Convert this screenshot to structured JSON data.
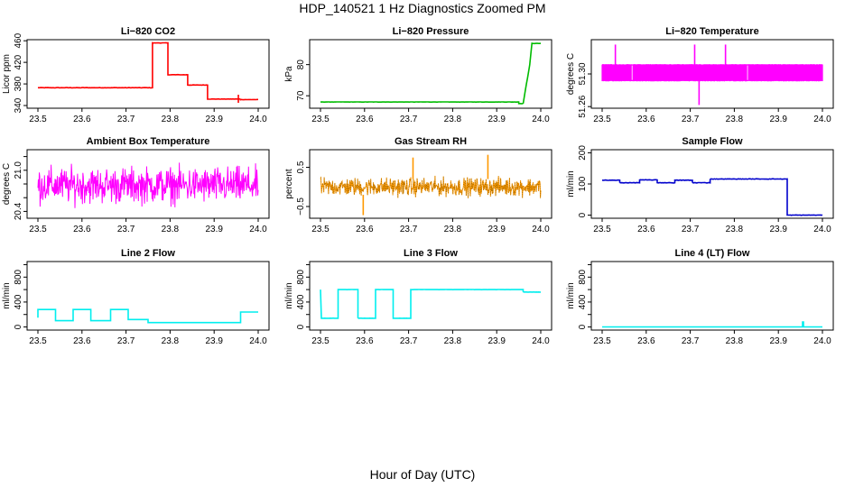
{
  "page": {
    "title": "HDP_140521  1 Hz Diagnostics Zoomed PM",
    "xlabel": "Hour of Day (UTC)"
  },
  "chart_data": [
    {
      "type": "line",
      "title": "Li−820 CO2",
      "ylabel": "Licor ppm",
      "xlim": [
        23.5,
        24.0
      ],
      "ylim": [
        335,
        462
      ],
      "yticks": [
        340,
        380,
        420,
        460
      ],
      "ytick_labels": [
        "340",
        "380",
        "420",
        "460"
      ],
      "xticks": [
        "23.5",
        "23.6",
        "23.7",
        "23.8",
        "23.9",
        "24.0"
      ],
      "color": "#ff0000",
      "noise": 0.6,
      "series": [
        {
          "x": [
            23.5,
            23.76,
            23.76,
            23.795,
            23.795,
            23.84,
            23.84,
            23.885,
            23.885,
            23.96,
            23.96,
            24.0
          ],
          "y": [
            373,
            373,
            456,
            456,
            397,
            397,
            378,
            378,
            352,
            352,
            351,
            351
          ]
        }
      ],
      "spikes": [
        {
          "x": 23.955,
          "y0": 345,
          "y1": 360
        }
      ]
    },
    {
      "type": "line",
      "title": "Li−820 Pressure",
      "ylabel": "kPa",
      "xlim": [
        23.5,
        24.0
      ],
      "ylim": [
        66,
        88
      ],
      "yticks": [
        70,
        80
      ],
      "ytick_labels": [
        "70",
        "80"
      ],
      "xticks": [
        "23.5",
        "23.6",
        "23.7",
        "23.8",
        "23.9",
        "24.0"
      ],
      "color": "#00bb00",
      "noise": 0.08,
      "series": [
        {
          "x": [
            23.5,
            23.95,
            23.95,
            23.96,
            23.975,
            23.98,
            24.0
          ],
          "y": [
            68.0,
            68.0,
            67.5,
            67.5,
            80.0,
            86.8,
            86.8
          ]
        }
      ]
    },
    {
      "type": "band",
      "title": "Li−820 Temperature",
      "ylabel": "degrees C",
      "xlim": [
        23.5,
        24.0
      ],
      "ylim": [
        51.258,
        51.342
      ],
      "yticks": [
        51.26,
        51.3
      ],
      "ytick_labels": [
        "51.26",
        "51.30"
      ],
      "xticks": [
        "23.5",
        "23.6",
        "23.7",
        "23.8",
        "23.9",
        "24.0"
      ],
      "color": "#ff00ff",
      "band": [
        51.2915,
        51.3115
      ],
      "spikes": [
        {
          "x": 23.53,
          "y0": 51.3,
          "y1": 51.336
        },
        {
          "x": 23.71,
          "y0": 51.3,
          "y1": 51.336
        },
        {
          "x": 23.78,
          "y0": 51.3,
          "y1": 51.336
        },
        {
          "x": 23.72,
          "y0": 51.262,
          "y1": 51.3
        }
      ]
    },
    {
      "type": "noise",
      "title": "Ambient Box Temperature",
      "ylabel": "degrees C",
      "xlim": [
        23.5,
        24.0
      ],
      "ylim": [
        20.3,
        21.3
      ],
      "yticks": [
        20.4,
        20.6,
        20.8,
        21.0,
        21.2
      ],
      "ytick_labels": [
        "20.4",
        "",
        "",
        "21.0",
        ""
      ],
      "xticks": [
        "23.5",
        "23.6",
        "23.7",
        "23.8",
        "23.9",
        "24.0"
      ],
      "color": "#ff00ff",
      "center": 20.78,
      "spread": 0.32,
      "points": 500
    },
    {
      "type": "noise",
      "title": "Gas Stream RH",
      "ylabel": "percent",
      "xlim": [
        23.5,
        24.0
      ],
      "ylim": [
        -0.8,
        0.95
      ],
      "yticks": [
        -0.5,
        0.5
      ],
      "ytick_labels": [
        "−0.5",
        "0.5"
      ],
      "xticks": [
        "23.5",
        "23.6",
        "23.7",
        "23.8",
        "23.9",
        "24.0"
      ],
      "color": "#cc8800",
      "center": 0.0,
      "spread": 0.28,
      "points": 600,
      "spikes": [
        {
          "x": 23.597,
          "y0": -0.2,
          "y1": -0.72
        },
        {
          "x": 23.71,
          "y0": 0.2,
          "y1": 0.75
        },
        {
          "x": 23.88,
          "y0": 0.2,
          "y1": 0.82
        }
      ]
    },
    {
      "type": "line",
      "title": "Sample Flow",
      "ylabel": "ml/min",
      "xlim": [
        23.5,
        24.0
      ],
      "ylim": [
        -10,
        210
      ],
      "yticks": [
        0,
        100,
        200
      ],
      "ytick_labels": [
        "0",
        "100",
        "200"
      ],
      "xticks": [
        "23.5",
        "23.6",
        "23.7",
        "23.8",
        "23.9",
        "24.0"
      ],
      "color": "#0000cc",
      "noise": 1.5,
      "series": [
        {
          "x": [
            23.5,
            23.54,
            23.54,
            23.585,
            23.585,
            23.625,
            23.625,
            23.665,
            23.665,
            23.705,
            23.705,
            23.745,
            23.745,
            23.92,
            23.92,
            24.0
          ],
          "y": [
            112,
            112,
            104,
            104,
            113,
            113,
            104,
            104,
            112,
            112,
            104,
            104,
            116,
            116,
            0,
            0
          ]
        }
      ]
    },
    {
      "type": "line",
      "title": "Line 2 Flow",
      "ylabel": "ml/min",
      "xlim": [
        23.5,
        24.0
      ],
      "ylim": [
        -50,
        1050
      ],
      "yticks": [
        0,
        200,
        400,
        600,
        800,
        1000
      ],
      "ytick_labels": [
        "0",
        "",
        "400",
        "",
        "800",
        ""
      ],
      "xticks": [
        "23.5",
        "23.6",
        "23.7",
        "23.8",
        "23.9",
        "24.0"
      ],
      "color": "#00eeee",
      "noise": 0,
      "series": [
        {
          "x": [
            23.5,
            23.5,
            23.54,
            23.54,
            23.58,
            23.58,
            23.62,
            23.62,
            23.665,
            23.665,
            23.705,
            23.705,
            23.75,
            23.75,
            23.96,
            23.96,
            24.0
          ],
          "y": [
            150,
            280,
            280,
            100,
            100,
            280,
            280,
            100,
            100,
            280,
            280,
            120,
            120,
            70,
            70,
            240,
            240
          ]
        }
      ]
    },
    {
      "type": "line",
      "title": "Line 3 Flow",
      "ylabel": "ml/min",
      "xlim": [
        23.5,
        24.0
      ],
      "ylim": [
        -50,
        1050
      ],
      "yticks": [
        0,
        200,
        400,
        600,
        800,
        1000
      ],
      "ytick_labels": [
        "0",
        "",
        "400",
        "",
        "800",
        ""
      ],
      "xticks": [
        "23.5",
        "23.6",
        "23.7",
        "23.8",
        "23.9",
        "24.0"
      ],
      "color": "#00eeee",
      "noise": 2,
      "series": [
        {
          "x": [
            23.5,
            23.5,
            23.502,
            23.502,
            23.54,
            23.54,
            23.585,
            23.585,
            23.625,
            23.625,
            23.665,
            23.665,
            23.705,
            23.705,
            23.96,
            23.96,
            24.0
          ],
          "y": [
            600,
            600,
            140,
            140,
            140,
            600,
            600,
            140,
            140,
            600,
            600,
            140,
            140,
            600,
            600,
            560,
            560
          ]
        }
      ]
    },
    {
      "type": "line",
      "title": "Line 4 (LT) Flow",
      "ylabel": "ml/min",
      "xlim": [
        23.5,
        24.0
      ],
      "ylim": [
        -50,
        1050
      ],
      "yticks": [
        0,
        200,
        400,
        600,
        800,
        1000
      ],
      "ytick_labels": [
        "0",
        "",
        "400",
        "",
        "800",
        ""
      ],
      "xticks": [
        "23.5",
        "23.6",
        "23.7",
        "23.8",
        "23.9",
        "24.0"
      ],
      "color": "#00eeee",
      "noise": 0,
      "series": [
        {
          "x": [
            23.5,
            23.955,
            23.955,
            23.957,
            23.957,
            24.0
          ],
          "y": [
            0,
            0,
            80,
            80,
            0,
            0
          ]
        }
      ]
    }
  ]
}
